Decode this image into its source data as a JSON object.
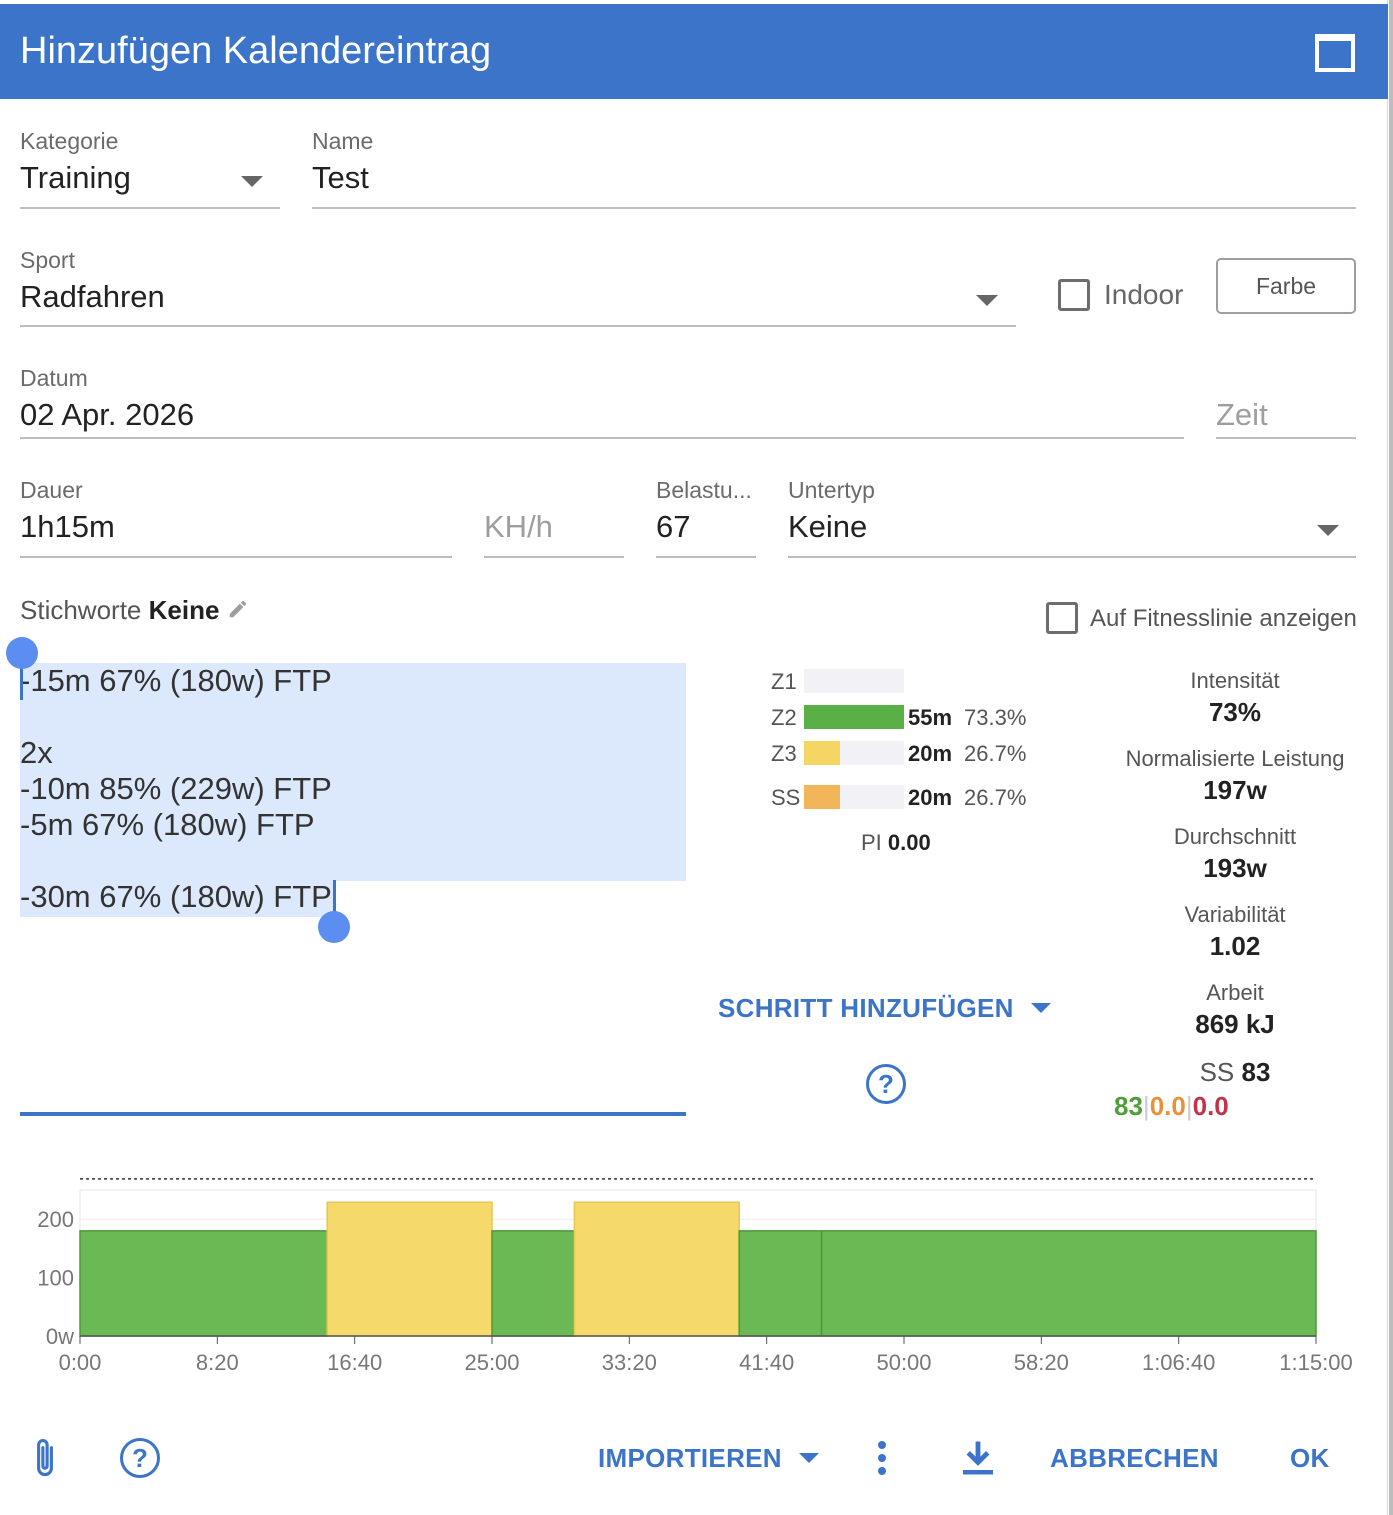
{
  "dialog": {
    "title": "Hinzufügen Kalendereintrag"
  },
  "form": {
    "category_label": "Kategorie",
    "category_value": "Training",
    "name_label": "Name",
    "name_value": "Test",
    "sport_label": "Sport",
    "sport_value": "Radfahren",
    "indoor_label": "Indoor",
    "indoor_checked": false,
    "color_button": "Farbe",
    "date_label": "Datum",
    "date_value": "02 Apr. 2026",
    "time_placeholder": "Zeit",
    "duration_label": "Dauer",
    "duration_value": "1h15m",
    "speed_placeholder": "KH/h",
    "load_label": "Belastu...",
    "load_value": "67",
    "subtype_label": "Untertyp",
    "subtype_value": "Keine",
    "tags_label": "Stichworte",
    "tags_value": "Keine",
    "fitness_line_label": "Auf Fitnesslinie anzeigen",
    "fitness_line_checked": false
  },
  "workout_text": {
    "lines": [
      "-15m 67% (180w) FTP",
      "",
      "2x",
      "-10m 85% (229w) FTP",
      "-5m 67% (180w) FTP",
      "",
      "-30m 67% (180w) FTP"
    ]
  },
  "zones": [
    {
      "label": "Z1",
      "time": "",
      "pct": "",
      "fraction": 0,
      "color": "#f1f1f6"
    },
    {
      "label": "Z2",
      "time": "55m",
      "pct": "73.3%",
      "fraction": 1.0,
      "color": "#5aaf47"
    },
    {
      "label": "Z3",
      "time": "20m",
      "pct": "26.7%",
      "fraction": 0.36,
      "color": "#f5d664"
    },
    {
      "label": "SS",
      "time": "20m",
      "pct": "26.7%",
      "fraction": 0.36,
      "color": "#f2b55a"
    }
  ],
  "pi": {
    "label": "PI",
    "value": "0.00"
  },
  "stats": [
    {
      "label": "Intensität",
      "value": "73%"
    },
    {
      "label": "Normalisierte Leistung",
      "value": "197w"
    },
    {
      "label": "Durchschnitt",
      "value": "193w"
    },
    {
      "label": "Variabilität",
      "value": "1.02"
    },
    {
      "label": "Arbeit",
      "value": "869 kJ"
    }
  ],
  "ss_summary": {
    "label": "SS",
    "value": "83",
    "parts": [
      "83",
      "0.0",
      "0.0"
    ],
    "part_colors": [
      "#4f9e3a",
      "#e8913a",
      "#c4324a"
    ]
  },
  "actions": {
    "add_step": "SCHRITT HINZUFÜGEN",
    "help_symbol": "?",
    "import": "IMPORTIEREN",
    "cancel": "ABBRECHEN",
    "ok": "OK"
  },
  "chart_data": {
    "type": "bar",
    "xlabel": "",
    "ylabel": "",
    "x_ticks": [
      "0:00",
      "8:20",
      "16:40",
      "25:00",
      "33:20",
      "41:40",
      "50:00",
      "58:20",
      "1:06:40",
      "1:15:00"
    ],
    "x_range_seconds": [
      0,
      4500
    ],
    "y_ticks": [
      "0w",
      "100",
      "200"
    ],
    "ylim": [
      0,
      250
    ],
    "ftp_line_w": 269,
    "steps": [
      {
        "start_s": 0,
        "end_s": 900,
        "watts": 180,
        "zone": "Z2"
      },
      {
        "start_s": 900,
        "end_s": 1500,
        "watts": 229,
        "zone": "Z3"
      },
      {
        "start_s": 1500,
        "end_s": 1800,
        "watts": 180,
        "zone": "Z2"
      },
      {
        "start_s": 1800,
        "end_s": 2400,
        "watts": 229,
        "zone": "Z3"
      },
      {
        "start_s": 2400,
        "end_s": 2700,
        "watts": 180,
        "zone": "Z2"
      },
      {
        "start_s": 2700,
        "end_s": 4500,
        "watts": 180,
        "zone": "Z2"
      }
    ],
    "zone_colors": {
      "Z2": "#6ab955",
      "Z3": "#f5d96a"
    }
  }
}
